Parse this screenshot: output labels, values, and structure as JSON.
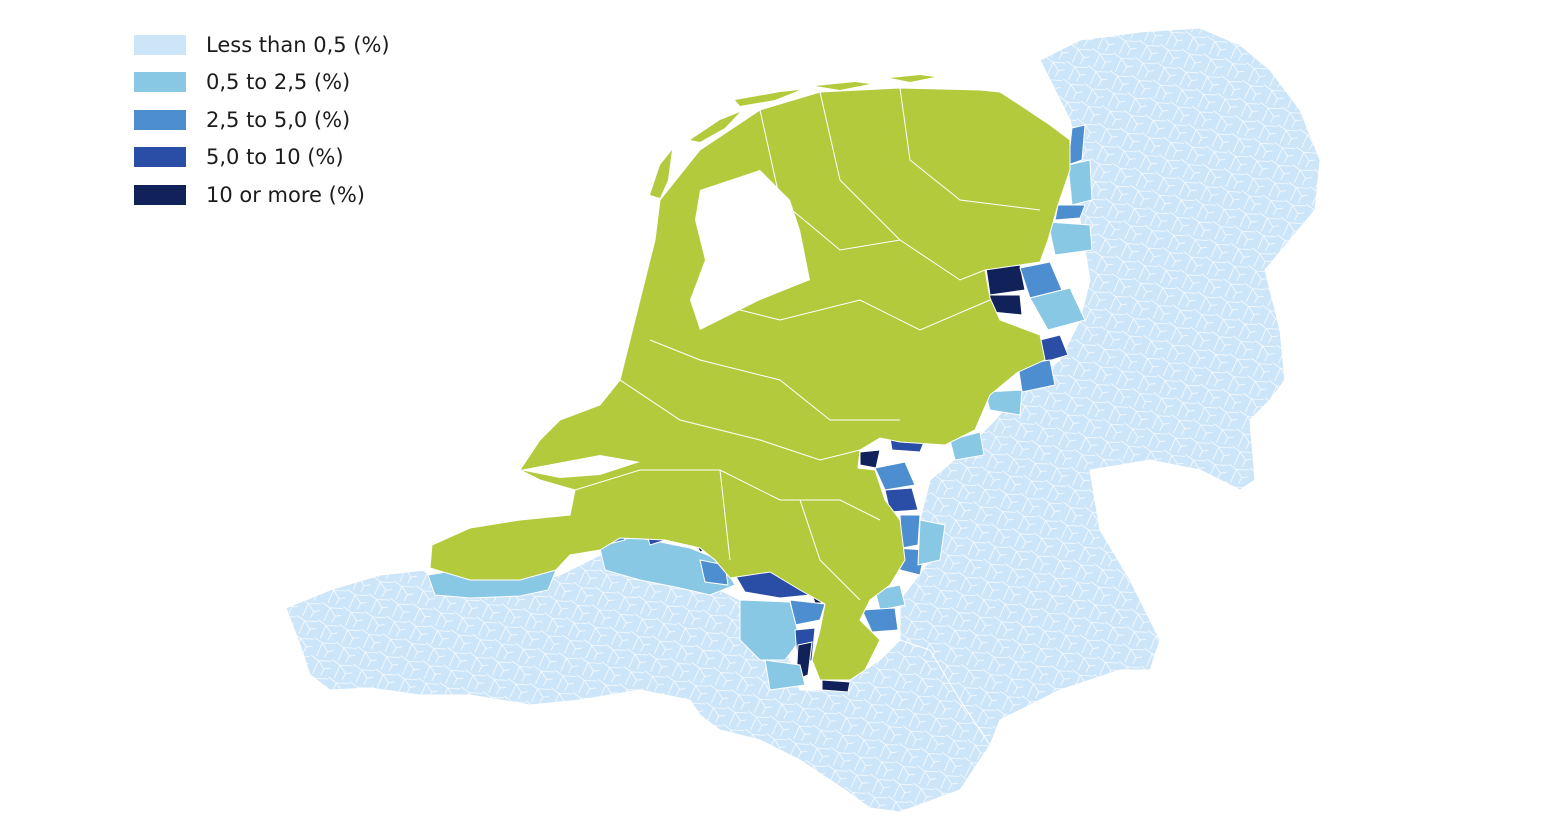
{
  "legend": {
    "items": [
      {
        "label": "Less than 0,5 (%)",
        "color": "#cce5f8",
        "name": "legend-item-less-than-0-5"
      },
      {
        "label": "0,5 to 2,5 (%)",
        "color": "#89c8e4",
        "name": "legend-item-0-5-to-2-5"
      },
      {
        "label": "2,5 to 5,0 (%)",
        "color": "#4d8ed0",
        "name": "legend-item-2-5-to-5-0"
      },
      {
        "label": "5,0 to 10 (%)",
        "color": "#2a4da6",
        "name": "legend-item-5-0-to-10"
      },
      {
        "label": "10 or more (%)",
        "color": "#11225a",
        "name": "legend-item-10-or-more"
      }
    ]
  },
  "map": {
    "home_country_color": "#b3ca3d",
    "boundary_color": "#ffffff",
    "background_color": "#ffffff"
  }
}
